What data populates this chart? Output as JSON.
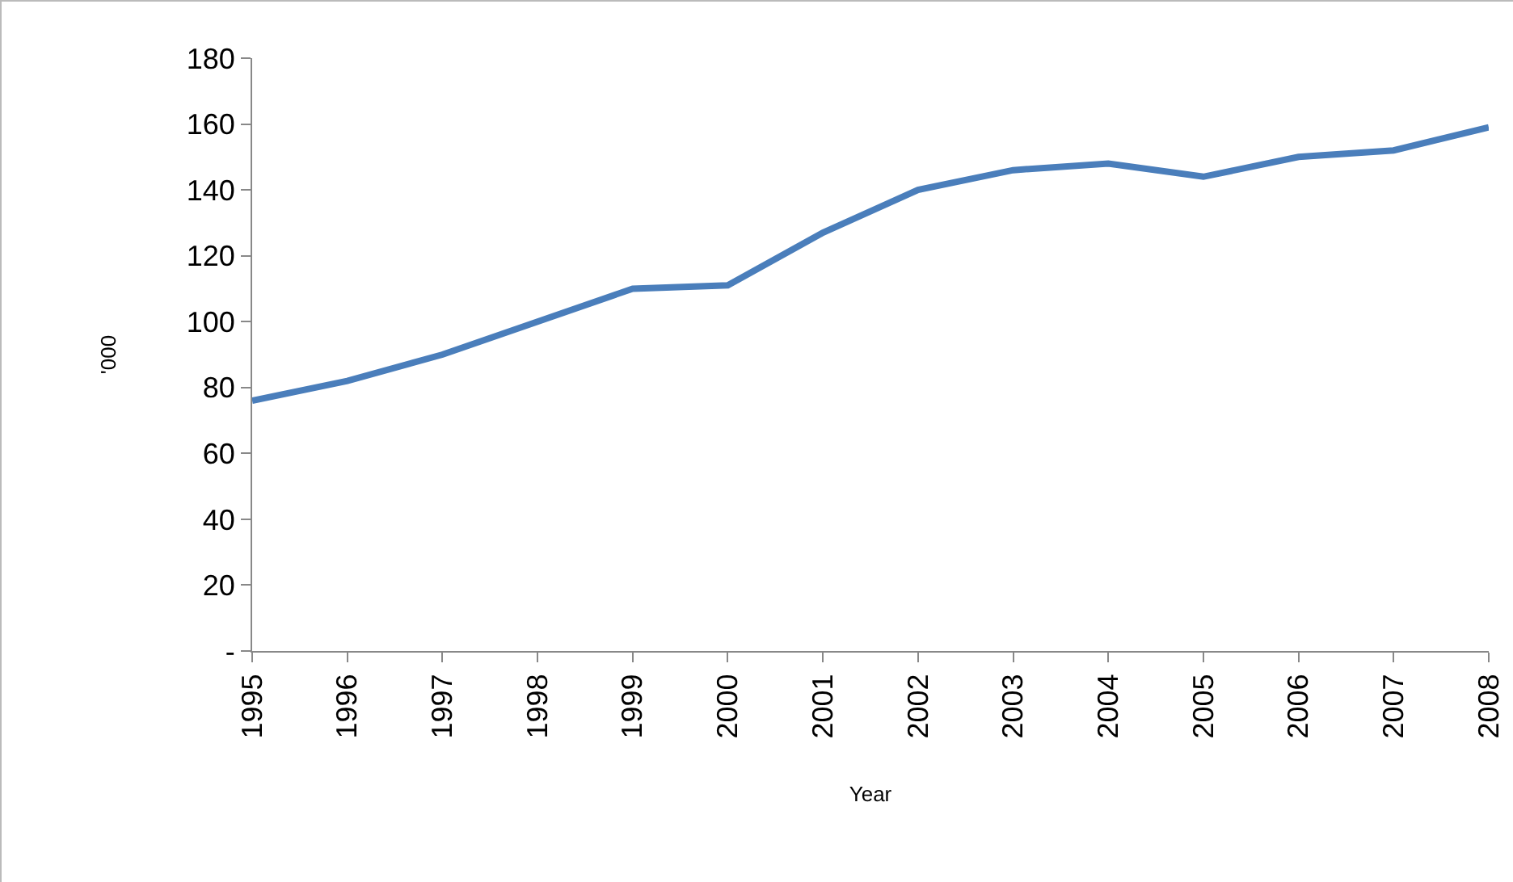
{
  "chart_data": {
    "type": "line",
    "xlabel": "Year",
    "ylabel": "'000",
    "x": [
      1995,
      1996,
      1997,
      1998,
      1999,
      2000,
      2001,
      2002,
      2003,
      2004,
      2005,
      2006,
      2007,
      2008
    ],
    "series": [
      {
        "color": "#4a7ebb",
        "values": [
          76,
          82,
          90,
          100,
          110,
          111,
          127,
          140,
          146,
          148,
          144,
          150,
          152,
          159
        ]
      }
    ],
    "xlim": [
      1995,
      2008
    ],
    "xticks": [
      1995,
      1996,
      1997,
      1998,
      1999,
      2000,
      2001,
      2002,
      2003,
      2004,
      2005,
      2006,
      2007,
      2008
    ],
    "ylim": [
      0,
      180
    ],
    "yticks": [
      {
        "value": 0,
        "label": "-"
      },
      20,
      40,
      60,
      80,
      100,
      120,
      140,
      160,
      180
    ],
    "grid": false,
    "marker": "none",
    "line_style": "solid"
  }
}
